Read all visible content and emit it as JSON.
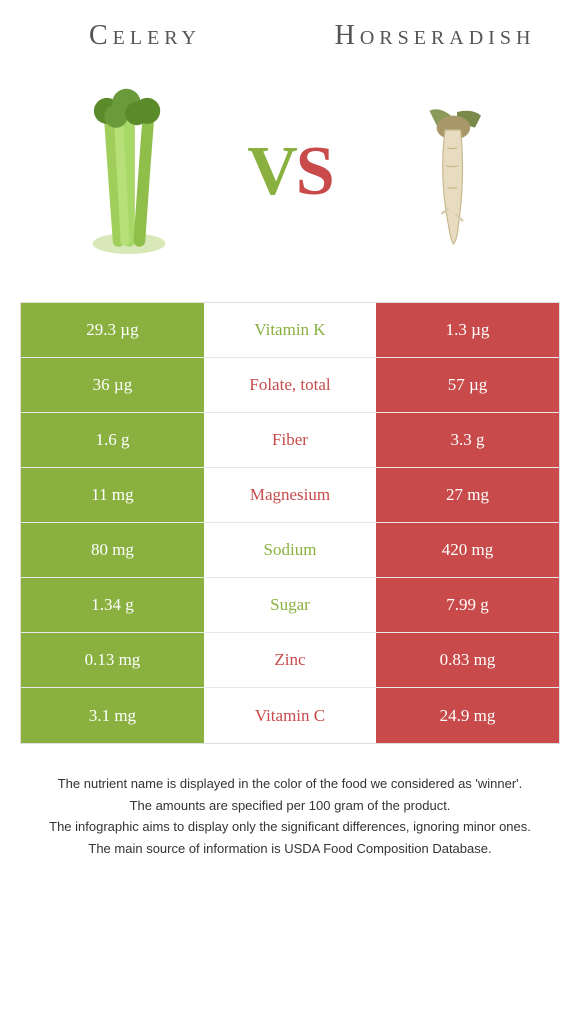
{
  "titles": {
    "left": "Celery",
    "right": "Horseradish"
  },
  "vs": {
    "v": "V",
    "s": "S"
  },
  "colors": {
    "celery_green": "#8ab13f",
    "horseradish_red": "#c94a4a",
    "nutrient_green": "#8ab13f",
    "nutrient_red": "#c94a4a"
  },
  "rows": [
    {
      "left": "29.3 µg",
      "mid": "Vitamin K",
      "right": "1.3 µg",
      "mid_color": "#8ab13f"
    },
    {
      "left": "36 µg",
      "mid": "Folate, total",
      "right": "57 µg",
      "mid_color": "#c94a4a"
    },
    {
      "left": "1.6 g",
      "mid": "Fiber",
      "right": "3.3 g",
      "mid_color": "#c94a4a"
    },
    {
      "left": "11 mg",
      "mid": "Magnesium",
      "right": "27 mg",
      "mid_color": "#c94a4a"
    },
    {
      "left": "80 mg",
      "mid": "Sodium",
      "right": "420 mg",
      "mid_color": "#8ab13f"
    },
    {
      "left": "1.34 g",
      "mid": "Sugar",
      "right": "7.99 g",
      "mid_color": "#8ab13f"
    },
    {
      "left": "0.13 mg",
      "mid": "Zinc",
      "right": "0.83 mg",
      "mid_color": "#c94a4a"
    },
    {
      "left": "3.1 mg",
      "mid": "Vitamin C",
      "right": "24.9 mg",
      "mid_color": "#c94a4a"
    }
  ],
  "footer": [
    "The nutrient name is displayed in the color of the food we considered as 'winner'.",
    "The amounts are specified per 100 gram of the product.",
    "The infographic aims to display only the significant differences, ignoring minor ones.",
    "The main source of information is USDA Food Composition Database."
  ]
}
